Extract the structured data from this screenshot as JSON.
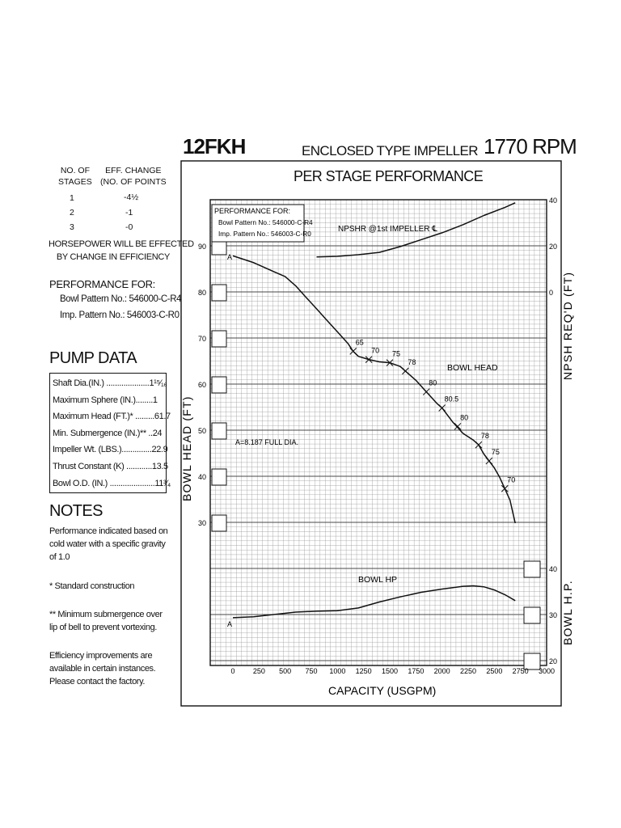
{
  "header": {
    "model": "12FKH",
    "impeller_type": "ENCLOSED TYPE IMPELLER",
    "speed": "1770 RPM",
    "chart_title": "PER STAGE PERFORMANCE"
  },
  "stages_table": {
    "headers": [
      "NO. OF STAGES",
      "EFF. CHANGE (NO. OF POINTS"
    ],
    "header_lines": [
      [
        "NO. OF",
        "EFF. CHANGE"
      ],
      [
        "STAGES",
        "(NO. OF POINTS"
      ]
    ],
    "rows": [
      [
        "1",
        "-4½"
      ],
      [
        "2",
        "-1"
      ],
      [
        "3",
        "-0"
      ]
    ],
    "note_lines": [
      "HORSEPOWER WILL BE EFFECTED",
      "BY CHANGE IN EFFICIENCY"
    ]
  },
  "performance_for": {
    "heading": "PERFORMANCE FOR:",
    "lines": [
      "Bowl Pattern No.: 546000-C-R4",
      "Imp. Pattern No.: 546003-C-R0"
    ]
  },
  "pump_data": {
    "heading": "PUMP DATA",
    "rows": [
      "Shaft Dia.(IN.) ....................1¹⁵⁄₁₆",
      "Maximum Sphere (IN.)........1",
      "Maximum Head (FT.)* .........61.7",
      "Min. Submergence (IN.)** ..24",
      "Impeller Wt. (LBS.)..............22.9",
      "Thrust Constant (K) ............13.5",
      "Bowl O.D. (IN.) .....................11³⁄₄"
    ]
  },
  "notes": {
    "heading": "NOTES",
    "paragraphs": [
      [
        "Performance indicated based on",
        "cold water with a specific gravity",
        "of 1.0"
      ],
      [
        "* Standard construction"
      ],
      [
        "** Minimum submergence over",
        "lip of bell to prevent vortexing."
      ],
      [
        "Efficiency improvements are",
        "available in certain instances.",
        "Please contact the factory."
      ]
    ]
  },
  "chart_labels": {
    "legend_heading": "PERFORMANCE FOR:",
    "legend_lines": [
      "Bowl Pattern No.: 546000-C-R4",
      "Imp. Pattern No.: 546003-C-R0"
    ],
    "npshr_label": "NPSHR @1st IMPELLER ℄",
    "bowl_head_label": "BOWL HEAD",
    "bowl_hp_label": "BOWL HP",
    "dia_label": "A=8.187 FULL DIA.",
    "curve_marker": "A",
    "ylabel_left": "BOWL HEAD (FT)",
    "ylabel_right_top": "NPSH REQ'D (FT)",
    "ylabel_right_bottom": "BOWL H.P.",
    "xlabel": "CAPACITY (USGPM)"
  },
  "chart_data": {
    "type": "line",
    "title": "PER STAGE PERFORMANCE",
    "xlabel": "CAPACITY (USGPM)",
    "xlim": [
      0,
      3000
    ],
    "x_ticks": [
      "0",
      "250",
      "500",
      "750",
      "1000",
      "1250",
      "1500",
      "1750",
      "2000",
      "2250",
      "2500",
      "2750",
      "3000"
    ],
    "head_axis": {
      "label": "BOWL HEAD (FT)",
      "ticks": [
        "30",
        "40",
        "50",
        "60",
        "70",
        "80",
        "90"
      ]
    },
    "npsh_axis": {
      "label": "NPSH REQ'D (FT)",
      "ticks": [
        "0",
        "20",
        "40"
      ]
    },
    "hp_axis": {
      "label": "BOWL H.P.",
      "ticks": [
        "20",
        "30",
        "40"
      ]
    },
    "series": [
      {
        "name": "BOWL HEAD",
        "axis": "head",
        "x": [
          0,
          200,
          400,
          500,
          600,
          700,
          800,
          900,
          1000,
          1100,
          1150,
          1200,
          1300,
          1400,
          1500,
          1600,
          1650,
          1750,
          1850,
          1950,
          2000,
          2100,
          2200,
          2300,
          2350,
          2400,
          2500,
          2550,
          2600,
          2650,
          2700
        ],
        "y": [
          88,
          86.5,
          84.5,
          83.5,
          81.5,
          79,
          76.5,
          74,
          71.5,
          69,
          67.3,
          66.2,
          65.5,
          65,
          64.8,
          64,
          63,
          61,
          58.5,
          56,
          55,
          52,
          49.5,
          48,
          47,
          45,
          42,
          40,
          37.5,
          35,
          30
        ]
      },
      {
        "name": "NPSHR @1st IMPELLER ℄",
        "axis": "npsh",
        "x": [
          800,
          1000,
          1200,
          1400,
          1600,
          1800,
          2000,
          2200,
          2400,
          2600,
          2700
        ],
        "y": [
          15.5,
          15.8,
          16.5,
          17.5,
          20,
          23,
          26,
          29.5,
          33.5,
          37,
          39
        ]
      },
      {
        "name": "BOWL HP",
        "axis": "hp",
        "x": [
          0,
          200,
          400,
          600,
          800,
          1000,
          1200,
          1400,
          1600,
          1800,
          2000,
          2200,
          2300,
          2400,
          2500,
          2600,
          2700
        ],
        "y": [
          29.5,
          29.7,
          30.2,
          30.7,
          30.9,
          31,
          31.6,
          32.9,
          34,
          35,
          35.7,
          36.3,
          36.4,
          36.2,
          35.5,
          34.5,
          33.2
        ]
      }
    ],
    "efficiency_marks": [
      {
        "label": "65",
        "x": 1150,
        "y": 67.3
      },
      {
        "label": "70",
        "x": 1300,
        "y": 65.5
      },
      {
        "label": "75",
        "x": 1500,
        "y": 64.8
      },
      {
        "label": "78",
        "x": 1650,
        "y": 63
      },
      {
        "label": "80",
        "x": 1850,
        "y": 58.5
      },
      {
        "label": "80.5",
        "x": 2000,
        "y": 55
      },
      {
        "label": "80",
        "x": 2150,
        "y": 51
      },
      {
        "label": "78",
        "x": 2350,
        "y": 47
      },
      {
        "label": "75",
        "x": 2450,
        "y": 43.5
      },
      {
        "label": "70",
        "x": 2600,
        "y": 37.5
      }
    ],
    "grid": true
  },
  "colors": {
    "ink": "#111111",
    "grid": "#9a9a9a",
    "grid_major": "#4a4a4a",
    "paper": "#ffffff"
  }
}
